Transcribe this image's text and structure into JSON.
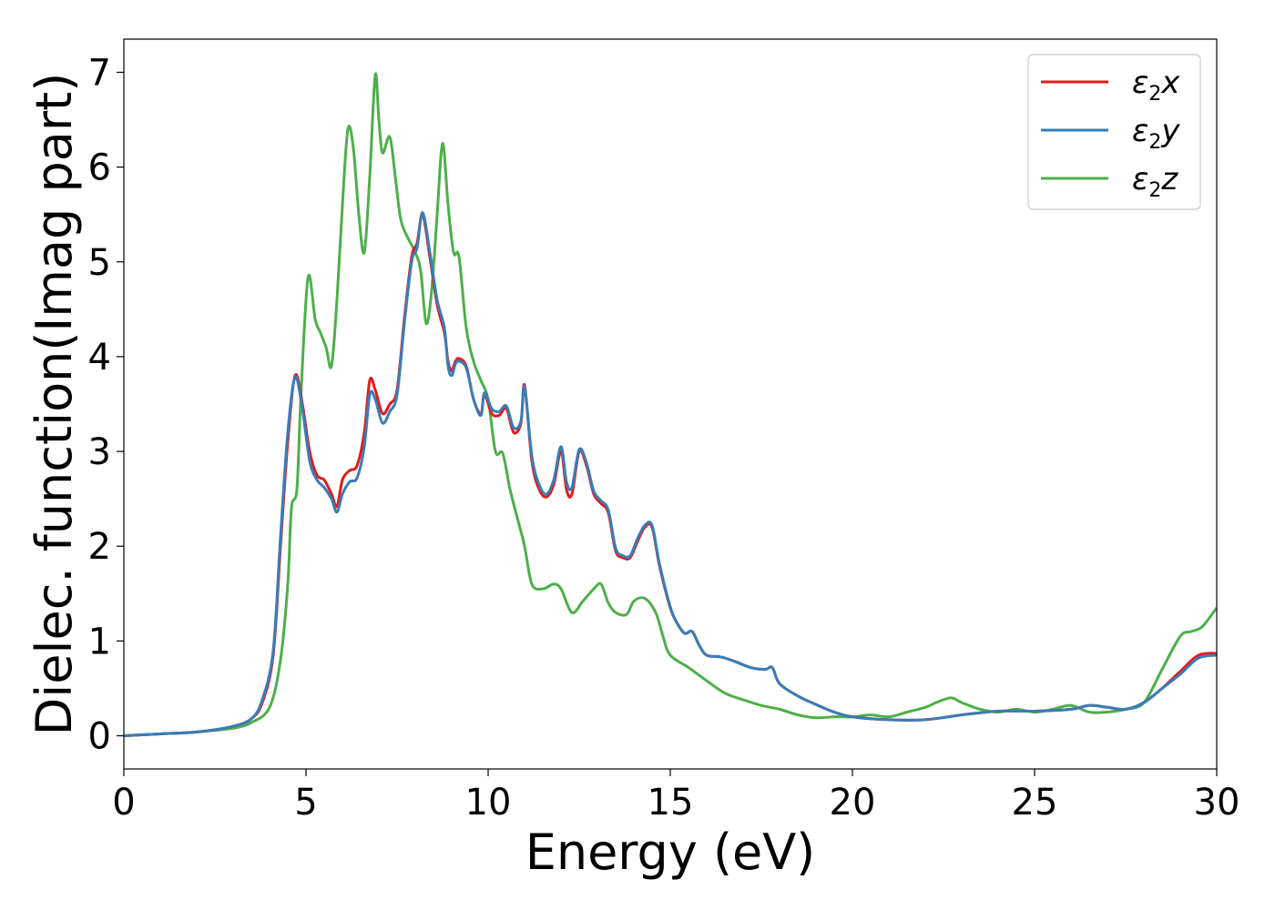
{
  "chart_data": {
    "type": "line",
    "xlabel": "Energy (eV)",
    "ylabel": "Dielec. function(Imag part)",
    "xlim": [
      0,
      30
    ],
    "ylim": [
      -0.35,
      7.35
    ],
    "xticks": [
      0,
      5,
      10,
      15,
      20,
      25,
      30
    ],
    "yticks": [
      0,
      1,
      2,
      3,
      4,
      5,
      6,
      7
    ],
    "grid": false,
    "legend_position": "top-right",
    "series": [
      {
        "name": "ε2x",
        "label_main": "ε",
        "label_sub": "2",
        "label_var": "x",
        "color": "#e41a1c",
        "x": [
          0,
          1,
          2,
          3,
          3.5,
          3.8,
          4.1,
          4.3,
          4.5,
          4.7,
          4.9,
          5.1,
          5.3,
          5.5,
          5.7,
          5.85,
          6.0,
          6.2,
          6.4,
          6.6,
          6.75,
          6.9,
          7.1,
          7.3,
          7.5,
          7.7,
          7.9,
          8.05,
          8.2,
          8.4,
          8.6,
          8.8,
          8.9,
          9.0,
          9.1,
          9.2,
          9.4,
          9.6,
          9.8,
          9.9,
          10.1,
          10.3,
          10.5,
          10.7,
          10.9,
          11.0,
          11.2,
          11.4,
          11.6,
          11.8,
          12.0,
          12.15,
          12.3,
          12.5,
          12.7,
          12.9,
          13.1,
          13.3,
          13.5,
          13.7,
          13.9,
          14.1,
          14.3,
          14.5,
          14.7,
          15.0,
          15.2,
          15.4,
          15.6,
          15.8,
          16.0,
          16.4,
          16.8,
          17.2,
          17.6,
          17.8,
          18.0,
          18.5,
          19.0,
          19.5,
          20,
          21,
          22,
          23,
          24,
          25,
          26,
          26.5,
          27,
          27.5,
          28,
          28.5,
          29,
          29.5,
          30
        ],
        "y": [
          0.0,
          0.02,
          0.04,
          0.1,
          0.18,
          0.35,
          0.85,
          2.0,
          3.1,
          3.8,
          3.5,
          3.0,
          2.75,
          2.7,
          2.55,
          2.42,
          2.7,
          2.8,
          2.85,
          3.2,
          3.75,
          3.65,
          3.4,
          3.5,
          3.65,
          4.4,
          5.05,
          5.2,
          5.5,
          5.05,
          4.55,
          4.25,
          3.95,
          3.85,
          3.95,
          3.98,
          3.9,
          3.55,
          3.4,
          3.6,
          3.4,
          3.38,
          3.45,
          3.2,
          3.3,
          3.7,
          2.9,
          2.6,
          2.52,
          2.65,
          3.0,
          2.6,
          2.55,
          3.0,
          2.85,
          2.55,
          2.45,
          2.35,
          1.95,
          1.88,
          1.88,
          2.05,
          2.2,
          2.2,
          1.8,
          1.35,
          1.18,
          1.08,
          1.1,
          0.95,
          0.85,
          0.83,
          0.78,
          0.72,
          0.7,
          0.72,
          0.55,
          0.42,
          0.33,
          0.25,
          0.2,
          0.17,
          0.17,
          0.22,
          0.26,
          0.26,
          0.28,
          0.32,
          0.3,
          0.28,
          0.35,
          0.5,
          0.68,
          0.85,
          0.87
        ]
      },
      {
        "name": "ε2y",
        "label_main": "ε",
        "label_sub": "2",
        "label_var": "y",
        "color": "#377eb8",
        "x": [
          0,
          1,
          2,
          3,
          3.5,
          3.8,
          4.1,
          4.3,
          4.5,
          4.7,
          4.9,
          5.1,
          5.3,
          5.5,
          5.7,
          5.85,
          6.0,
          6.2,
          6.4,
          6.6,
          6.75,
          6.9,
          7.1,
          7.3,
          7.5,
          7.7,
          7.9,
          8.05,
          8.2,
          8.4,
          8.6,
          8.8,
          8.9,
          9.0,
          9.1,
          9.2,
          9.4,
          9.6,
          9.8,
          9.9,
          10.1,
          10.3,
          10.5,
          10.7,
          10.9,
          11.0,
          11.2,
          11.4,
          11.6,
          11.8,
          12.0,
          12.15,
          12.3,
          12.5,
          12.7,
          12.9,
          13.1,
          13.3,
          13.5,
          13.7,
          13.9,
          14.1,
          14.3,
          14.5,
          14.7,
          15.0,
          15.2,
          15.4,
          15.6,
          15.8,
          16.0,
          16.4,
          16.8,
          17.2,
          17.6,
          17.8,
          18.0,
          18.5,
          19.0,
          19.5,
          20,
          21,
          22,
          23,
          24,
          25,
          26,
          26.5,
          27,
          27.5,
          28,
          28.5,
          29,
          29.5,
          30
        ],
        "y": [
          0.0,
          0.02,
          0.04,
          0.1,
          0.18,
          0.38,
          0.9,
          2.1,
          3.2,
          3.78,
          3.45,
          2.9,
          2.7,
          2.62,
          2.5,
          2.36,
          2.55,
          2.68,
          2.72,
          3.05,
          3.6,
          3.55,
          3.3,
          3.42,
          3.6,
          4.35,
          5.0,
          5.15,
          5.52,
          5.1,
          4.6,
          4.3,
          3.9,
          3.8,
          3.92,
          3.95,
          3.88,
          3.55,
          3.38,
          3.62,
          3.45,
          3.42,
          3.48,
          3.25,
          3.32,
          3.68,
          2.95,
          2.65,
          2.55,
          2.7,
          3.05,
          2.68,
          2.62,
          3.02,
          2.88,
          2.58,
          2.48,
          2.38,
          1.98,
          1.9,
          1.9,
          2.08,
          2.22,
          2.22,
          1.82,
          1.36,
          1.18,
          1.08,
          1.1,
          0.95,
          0.85,
          0.83,
          0.78,
          0.72,
          0.7,
          0.72,
          0.55,
          0.42,
          0.33,
          0.25,
          0.2,
          0.17,
          0.17,
          0.22,
          0.26,
          0.26,
          0.28,
          0.32,
          0.3,
          0.28,
          0.35,
          0.5,
          0.65,
          0.82,
          0.85
        ]
      },
      {
        "name": "ε2z",
        "label_main": "ε",
        "label_sub": "2",
        "label_var": "z",
        "color": "#4daf4a",
        "x": [
          0,
          1,
          2,
          3,
          3.5,
          4.0,
          4.3,
          4.5,
          4.6,
          4.75,
          4.85,
          5.0,
          5.1,
          5.25,
          5.4,
          5.55,
          5.7,
          5.85,
          6.0,
          6.15,
          6.3,
          6.45,
          6.6,
          6.75,
          6.9,
          7.0,
          7.1,
          7.3,
          7.45,
          7.6,
          7.8,
          8.0,
          8.15,
          8.3,
          8.45,
          8.6,
          8.75,
          8.9,
          9.05,
          9.2,
          9.4,
          9.6,
          9.8,
          10.0,
          10.2,
          10.4,
          10.6,
          10.8,
          11.0,
          11.2,
          11.5,
          11.8,
          12.0,
          12.3,
          12.6,
          12.9,
          13.1,
          13.3,
          13.5,
          13.8,
          14.0,
          14.3,
          14.6,
          14.8,
          15.0,
          15.5,
          16.0,
          16.5,
          17.0,
          17.5,
          18.0,
          18.5,
          19.0,
          19.5,
          20.0,
          20.5,
          21.0,
          21.5,
          22.0,
          22.3,
          22.7,
          23.0,
          23.5,
          24.0,
          24.5,
          25.0,
          25.5,
          26.0,
          26.5,
          27.0,
          27.5,
          28.0,
          28.5,
          29.0,
          29.3,
          29.6,
          30
        ],
        "y": [
          0.0,
          0.02,
          0.04,
          0.08,
          0.14,
          0.3,
          0.8,
          1.6,
          2.4,
          2.6,
          3.5,
          4.6,
          4.85,
          4.4,
          4.25,
          4.1,
          3.9,
          4.6,
          5.6,
          6.4,
          6.2,
          5.5,
          5.1,
          5.9,
          6.97,
          6.5,
          6.15,
          6.32,
          5.9,
          5.45,
          5.25,
          5.1,
          4.9,
          4.35,
          4.7,
          5.5,
          6.25,
          5.6,
          5.1,
          5.05,
          4.3,
          3.95,
          3.75,
          3.55,
          3.0,
          2.98,
          2.6,
          2.3,
          2.0,
          1.6,
          1.55,
          1.6,
          1.55,
          1.3,
          1.42,
          1.55,
          1.6,
          1.4,
          1.3,
          1.28,
          1.42,
          1.45,
          1.3,
          1.05,
          0.85,
          0.72,
          0.58,
          0.45,
          0.38,
          0.32,
          0.28,
          0.22,
          0.19,
          0.2,
          0.2,
          0.22,
          0.2,
          0.25,
          0.3,
          0.35,
          0.4,
          0.35,
          0.28,
          0.25,
          0.28,
          0.25,
          0.28,
          0.32,
          0.25,
          0.25,
          0.28,
          0.35,
          0.7,
          1.05,
          1.1,
          1.15,
          1.35
        ]
      }
    ]
  }
}
